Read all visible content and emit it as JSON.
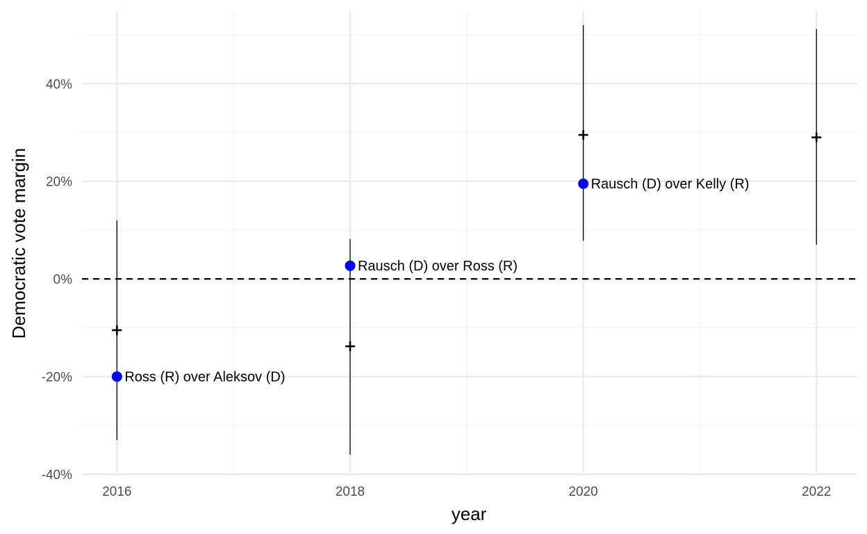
{
  "chart_data": {
    "type": "scatter",
    "title": "",
    "xlabel": "year",
    "ylabel": "Democratic vote margin",
    "xlim": [
      2015.7,
      2022.35
    ],
    "ylim": [
      -0.4,
      0.55
    ],
    "x_ticks": [
      2016,
      2018,
      2020,
      2022
    ],
    "x_tick_labels": [
      "2016",
      "2018",
      "2020",
      "2022"
    ],
    "y_ticks": [
      -0.4,
      -0.2,
      0.0,
      0.2,
      0.4
    ],
    "y_tick_labels": [
      "-40%",
      "-20%",
      "0%",
      "20%",
      "40%"
    ],
    "grid": true,
    "reference_line": {
      "y": 0,
      "style": "dashed"
    },
    "forecasts": [
      {
        "x": 2016,
        "estimate": -0.105,
        "low": -0.33,
        "high": 0.12
      },
      {
        "x": 2018,
        "estimate": -0.138,
        "low": -0.36,
        "high": 0.082
      },
      {
        "x": 2020,
        "estimate": 0.295,
        "low": 0.078,
        "high": 0.52
      },
      {
        "x": 2022,
        "estimate": 0.29,
        "low": 0.07,
        "high": 0.512
      }
    ],
    "results": [
      {
        "x": 2016,
        "y": -0.2,
        "label": "Ross (R) over Aleksov (D)"
      },
      {
        "x": 2018,
        "y": 0.027,
        "label": "Rausch (D) over Ross (R)"
      },
      {
        "x": 2020,
        "y": 0.195,
        "label": "Rausch (D) over Kelly (R)"
      }
    ],
    "colors": {
      "result_point": "#0000ff",
      "forecast": "#000000",
      "grid_major": "#ebebeb",
      "grid_minor": "#f3f3f3"
    }
  }
}
